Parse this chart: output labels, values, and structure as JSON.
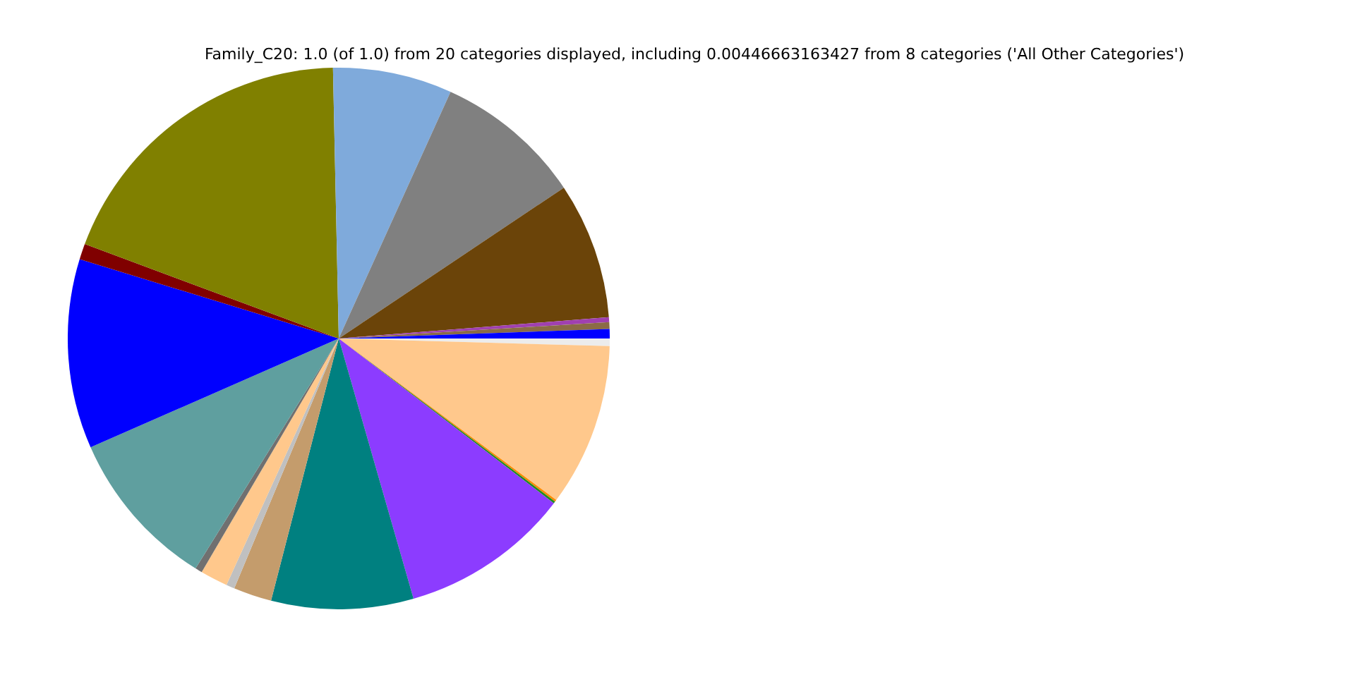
{
  "chart_data": {
    "type": "pie",
    "title": "Family_C20: 1.0 (of 1.0) from 20 categories displayed, including 0.00446663163427 from 8 categories ('All Other Categories')",
    "categories": [
      null,
      null,
      null,
      null,
      null,
      null,
      null,
      null,
      null,
      null,
      null,
      null,
      null,
      null,
      null,
      null,
      null,
      null,
      null,
      null
    ],
    "values": [
      0.45,
      9.72,
      0.12,
      0.12,
      10.14,
      8.47,
      2.28,
      0.5,
      1.64,
      0.42,
      9.56,
      11.31,
      0.94,
      18.99,
      7.11,
      8.83,
      8.14,
      0.3,
      0.4,
      0.56
    ],
    "colors": [
      "#ececec",
      "#ffc88c",
      "#ff8c00",
      "#228b22",
      "#8c3cff",
      "#008080",
      "#c49c6c",
      "#c0c0c0",
      "#ffc88c",
      "#707070",
      "#5f9f9f",
      "#0000ff",
      "#800000",
      "#808000",
      "#7faadb",
      "#808080",
      "#6b4409",
      "#a040b0",
      "#8b6b45",
      "#0000ff"
    ]
  }
}
